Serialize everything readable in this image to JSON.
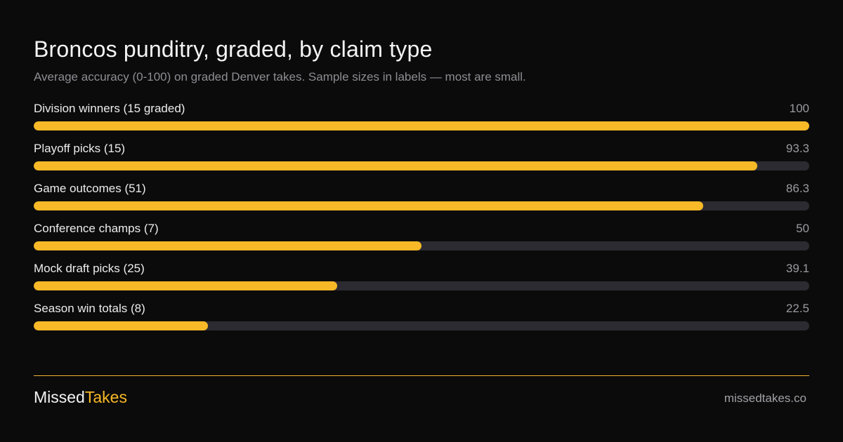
{
  "header": {
    "title": "Broncos punditry, graded, by claim type",
    "subtitle": "Average accuracy (0-100) on graded Denver takes. Sample sizes in labels — most are small."
  },
  "footer": {
    "brand_part1": "Missed",
    "brand_part2": "Takes",
    "site": "missedtakes.co"
  },
  "colors": {
    "background": "#0b0b0b",
    "bar_fill": "#f7b927",
    "bar_track": "#2c2b31",
    "accent": "#f0b530"
  },
  "chart_data": {
    "type": "bar",
    "orientation": "horizontal",
    "title": "Broncos punditry, graded, by claim type",
    "subtitle": "Average accuracy (0-100) on graded Denver takes. Sample sizes in labels — most are small.",
    "xlim": [
      0,
      100
    ],
    "grid": false,
    "legend": "none",
    "categories": [
      "Division winners (15 graded)",
      "Playoff picks (15)",
      "Game outcomes (51)",
      "Conference champs (7)",
      "Mock draft picks (25)",
      "Season win totals (8)"
    ],
    "values": [
      100,
      93.3,
      86.3,
      50,
      39.1,
      22.5
    ],
    "value_labels": [
      "100",
      "93.3",
      "86.3",
      "50",
      "39.1",
      "22.5"
    ]
  }
}
